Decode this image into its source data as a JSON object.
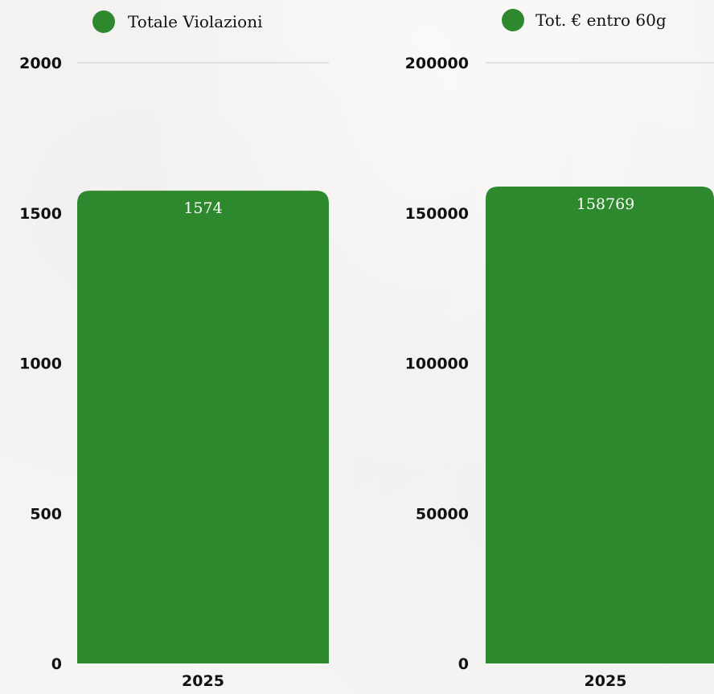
{
  "chart_data": [
    {
      "type": "bar",
      "categories": [
        "2025"
      ],
      "series": [
        {
          "name": "Totale Violazioni",
          "values": [
            1574
          ]
        }
      ],
      "ylim": [
        0,
        2000
      ],
      "yticks": [
        0,
        500,
        1000,
        1500,
        2000
      ],
      "legend": "top",
      "grid": true,
      "color": "#2e882d"
    },
    {
      "type": "bar",
      "categories": [
        "2025"
      ],
      "series": [
        {
          "name": "Tot. € entro 60g",
          "values": [
            158769
          ]
        }
      ],
      "ylim": [
        0,
        200000
      ],
      "yticks": [
        0,
        50000,
        100000,
        150000,
        200000
      ],
      "legend": "top",
      "grid": true,
      "color": "#2e882d"
    }
  ]
}
